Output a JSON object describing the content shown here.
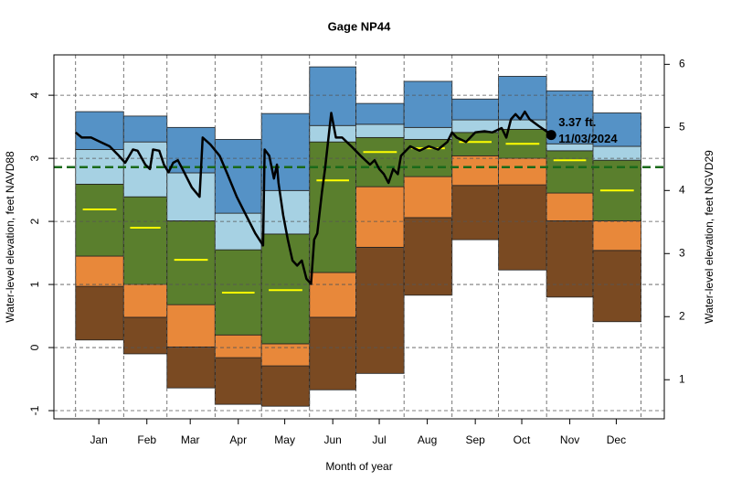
{
  "chart_data": {
    "type": "percentile_bands",
    "title": "Gage NP44",
    "x_label": "Month of year",
    "y_label": "Water-level elevation, feet NAVD88",
    "y2_label": "Water-level elevation, feet NGVD29",
    "xlim": [
      -14,
      380
    ],
    "xticks": [
      {
        "value": 15,
        "label": "Jan"
      },
      {
        "value": 46,
        "label": "Feb"
      },
      {
        "value": 74,
        "label": "Mar"
      },
      {
        "value": 105,
        "label": "Apr"
      },
      {
        "value": 135,
        "label": "May"
      },
      {
        "value": 166,
        "label": "Jun"
      },
      {
        "value": 196,
        "label": "Jul"
      },
      {
        "value": 227,
        "label": "Aug"
      },
      {
        "value": 258,
        "label": "Sep"
      },
      {
        "value": 288,
        "label": "Oct"
      },
      {
        "value": 319,
        "label": "Nov"
      },
      {
        "value": 349,
        "label": "Dec"
      }
    ],
    "bins": [
      0,
      31,
      59,
      90,
      120,
      151,
      181,
      212,
      243,
      273,
      304,
      334,
      365
    ],
    "ylim": [
      -1.13,
      4.64
    ],
    "yticks": [
      -1,
      0,
      1,
      2,
      3,
      4
    ],
    "y2lim": [
      0.38,
      6.15
    ],
    "y2ticks": [
      1,
      2,
      3,
      4,
      5,
      6
    ],
    "grid": true,
    "band_colors": [
      "#7a4a22",
      "#e8883a",
      "#5a7f2d",
      "#a6d1e3",
      "#5592c6"
    ],
    "levels": [
      [
        0.12,
        -0.1,
        -0.64,
        -0.9,
        -0.93,
        -0.67,
        -0.41,
        0.83,
        1.71,
        1.23,
        0.8,
        0.41
      ],
      [
        0.97,
        0.48,
        0.01,
        -0.16,
        -0.29,
        0.48,
        1.59,
        2.06,
        2.57,
        2.58,
        2.01,
        1.54
      ],
      [
        1.45,
        1.0,
        0.68,
        0.2,
        0.06,
        1.19,
        2.55,
        2.71,
        3.04,
        3.0,
        2.45,
        2.01
      ],
      [
        2.59,
        2.39,
        2.01,
        1.55,
        1.8,
        3.26,
        3.33,
        3.3,
        3.41,
        3.46,
        3.12,
        2.97
      ],
      [
        3.14,
        3.26,
        2.77,
        2.13,
        2.49,
        3.52,
        3.54,
        3.49,
        3.61,
        3.61,
        3.23,
        3.19
      ],
      [
        3.74,
        3.67,
        3.49,
        3.3,
        3.71,
        4.45,
        3.87,
        4.22,
        3.94,
        4.3,
        4.07,
        3.72
      ]
    ],
    "median": {
      "color": "#ffff00",
      "values": [
        2.19,
        1.9,
        1.39,
        0.87,
        0.91,
        2.65,
        3.1,
        3.16,
        3.26,
        3.23,
        2.97,
        2.49
      ]
    },
    "ref_line": {
      "value": 2.86,
      "color": "#1a6a1a"
    },
    "line": {
      "color": "#000000",
      "x": [
        0,
        4,
        10,
        16,
        22,
        28,
        32,
        37,
        40,
        45,
        48,
        50,
        54,
        57,
        60,
        63,
        66,
        69,
        75,
        80,
        82,
        87,
        93,
        98,
        104,
        110,
        116,
        121,
        122,
        125,
        128,
        130,
        131,
        134,
        137,
        140,
        143,
        146,
        149,
        152,
        154,
        156,
        159,
        161,
        165,
        168,
        172,
        178,
        184,
        190,
        193,
        196,
        199,
        202,
        205,
        208,
        210,
        216,
        222,
        228,
        234,
        240,
        243,
        246,
        252,
        258,
        264,
        269,
        275,
        278,
        281,
        284,
        287,
        290,
        293,
        299,
        305,
        307
      ],
      "values": [
        3.41,
        3.33,
        3.33,
        3.26,
        3.19,
        3.04,
        2.93,
        3.14,
        3.12,
        2.9,
        2.83,
        3.14,
        3.12,
        2.9,
        2.78,
        2.93,
        2.97,
        2.83,
        2.54,
        2.39,
        3.33,
        3.22,
        3.04,
        2.75,
        2.39,
        2.1,
        1.81,
        1.62,
        3.14,
        3.04,
        2.68,
        2.9,
        2.61,
        2.1,
        1.71,
        1.38,
        1.3,
        1.38,
        1.09,
        1.01,
        1.71,
        1.81,
        2.46,
        2.83,
        3.72,
        3.33,
        3.33,
        3.19,
        3.04,
        2.9,
        2.97,
        2.83,
        2.75,
        2.61,
        2.83,
        2.75,
        3.04,
        3.19,
        3.12,
        3.19,
        3.14,
        3.26,
        3.41,
        3.33,
        3.26,
        3.41,
        3.43,
        3.41,
        3.48,
        3.33,
        3.62,
        3.7,
        3.62,
        3.74,
        3.62,
        3.51,
        3.41,
        3.37
      ]
    },
    "point": {
      "x": 307,
      "value": 3.37,
      "value_label": "3.37 ft.",
      "date": "11/03/2024"
    }
  }
}
